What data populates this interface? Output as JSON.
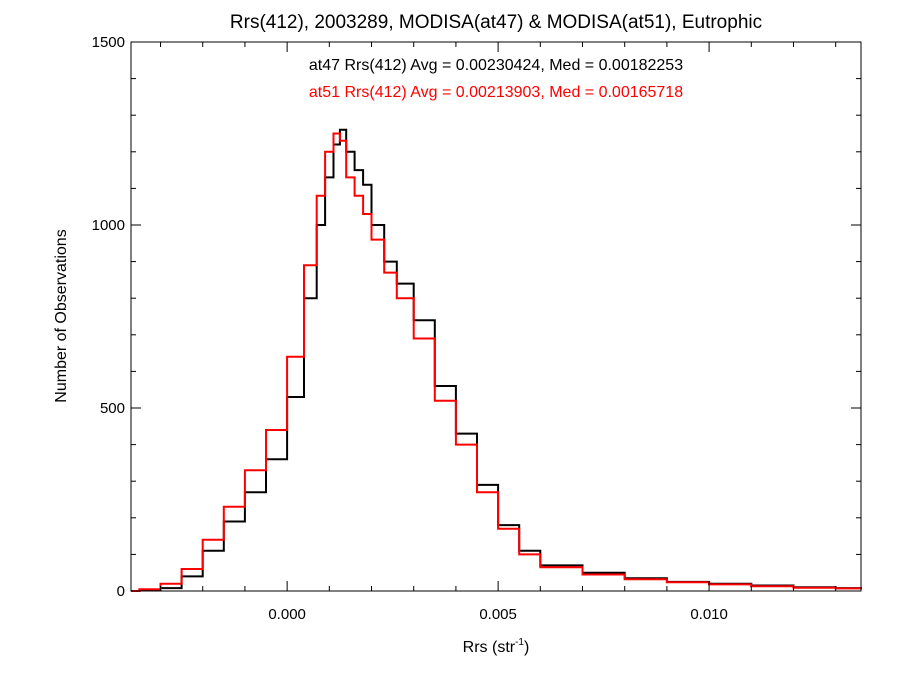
{
  "chart_data": {
    "type": "line",
    "step": true,
    "title": "Rrs(412), 2003289, MODISA(at47) & MODISA(at51), Eutrophic",
    "xlabel": {
      "prefix": "Rrs (str",
      "sup": "-1",
      "suffix": ")"
    },
    "ylabel": "Number of Observations",
    "xlim": [
      -0.0037,
      0.0136
    ],
    "ylim": [
      0,
      1500
    ],
    "x_ticks": [
      0.0,
      0.005,
      0.01
    ],
    "x_tick_labels": [
      "0.000",
      "0.005",
      "0.010"
    ],
    "y_ticks": [
      0,
      500,
      1000,
      1500
    ],
    "y_tick_labels": [
      "0",
      "500",
      "1000",
      "1500"
    ],
    "annotations": [
      {
        "text": "at47 Rrs(412) Avg = 0.00230424, Med = 0.00182253",
        "color": "#000000"
      },
      {
        "text": "at51 Rrs(412) Avg = 0.00213903, Med = 0.00165718",
        "color": "#ff0000"
      }
    ],
    "series": [
      {
        "color": "#000000",
        "x": [
          -0.0037,
          -0.0035,
          -0.003,
          -0.0025,
          -0.002,
          -0.0015,
          -0.001,
          -0.0005,
          0.0,
          0.0004,
          0.0007,
          0.0009,
          0.0011,
          0.00125,
          0.0014,
          0.0016,
          0.0018,
          0.002,
          0.0023,
          0.0026,
          0.003,
          0.0035,
          0.004,
          0.0045,
          0.005,
          0.0055,
          0.006,
          0.007,
          0.008,
          0.009,
          0.01,
          0.011,
          0.012,
          0.013,
          0.0136
        ],
        "y": [
          0,
          2,
          8,
          40,
          110,
          190,
          270,
          360,
          530,
          800,
          1000,
          1130,
          1220,
          1260,
          1200,
          1150,
          1110,
          1000,
          900,
          840,
          740,
          560,
          430,
          290,
          180,
          110,
          70,
          50,
          35,
          25,
          20,
          15,
          10,
          8,
          5
        ]
      },
      {
        "color": "#ff0000",
        "x": [
          -0.0037,
          -0.0035,
          -0.003,
          -0.0025,
          -0.002,
          -0.0015,
          -0.001,
          -0.0005,
          0.0,
          0.0004,
          0.0007,
          0.0009,
          0.0011,
          0.00125,
          0.0014,
          0.0016,
          0.0018,
          0.002,
          0.0023,
          0.0026,
          0.003,
          0.0035,
          0.004,
          0.0045,
          0.005,
          0.0055,
          0.006,
          0.007,
          0.008,
          0.009,
          0.01,
          0.011,
          0.012,
          0.013,
          0.0136
        ],
        "y": [
          0,
          5,
          20,
          60,
          140,
          230,
          330,
          440,
          640,
          890,
          1080,
          1200,
          1250,
          1230,
          1130,
          1080,
          1030,
          960,
          870,
          800,
          690,
          520,
          400,
          270,
          170,
          100,
          65,
          45,
          32,
          24,
          18,
          13,
          9,
          7,
          5
        ]
      }
    ]
  }
}
